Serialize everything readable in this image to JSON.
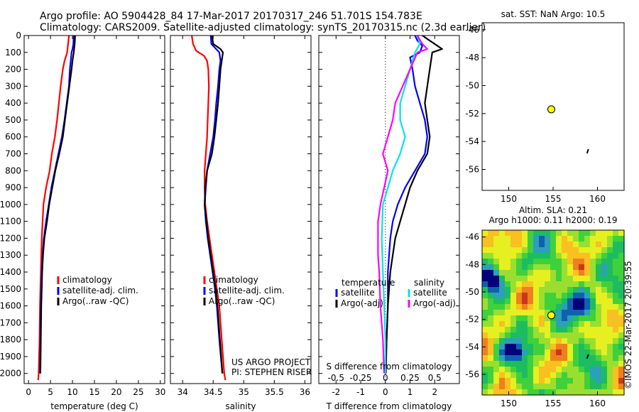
{
  "header": {
    "line1": "Argo profile: AO 5904428_84 17-Mar-2017 20170317_246 51.701S 154.783E",
    "line2": "Climatology: CARS2009. Satellite-adjusted climatology: synTS_20170315.nc (2.3d earlier)"
  },
  "credit": "©IMOS 22-Mar-2017 20:39:55",
  "colors": {
    "climatology": "#ff0000",
    "satellite": "#0000ff",
    "argo": "#000000",
    "sal_satellite": "#00e5e5",
    "sal_argo": "#ff00ff",
    "float_marker": "#ffff00"
  },
  "chart_data": [
    {
      "id": "temperature",
      "type": "line",
      "xlabel": "temperature (deg C)",
      "ylabel": "",
      "xlim": [
        -1,
        31
      ],
      "ylim": [
        2060,
        0
      ],
      "xticks": [
        0,
        5,
        10,
        15,
        20,
        25,
        30
      ],
      "yticks": [
        0,
        100,
        200,
        300,
        400,
        500,
        600,
        700,
        800,
        900,
        1000,
        1100,
        1200,
        1300,
        1400,
        1500,
        1600,
        1700,
        1800,
        1900,
        2000
      ],
      "legend": [
        "climatology",
        "satellite-adj. clim.",
        "Argo(..raw -QC)"
      ],
      "legend_position": "lower-right",
      "series": [
        {
          "name": "climatology",
          "color": "#ff0000",
          "points": [
            [
              9.2,
              0
            ],
            [
              9.0,
              50
            ],
            [
              8.8,
              100
            ],
            [
              8.2,
              150
            ],
            [
              7.8,
              200
            ],
            [
              7.3,
              300
            ],
            [
              6.9,
              400
            ],
            [
              6.5,
              500
            ],
            [
              6.0,
              600
            ],
            [
              5.3,
              700
            ],
            [
              4.8,
              800
            ],
            [
              4.0,
              900
            ],
            [
              3.4,
              1000
            ],
            [
              3.2,
              1100
            ],
            [
              3.0,
              1200
            ],
            [
              2.9,
              1300
            ],
            [
              2.8,
              1400
            ],
            [
              2.7,
              1500
            ],
            [
              2.6,
              1600
            ],
            [
              2.5,
              1800
            ],
            [
              2.3,
              2000
            ],
            [
              2.2,
              2040
            ]
          ]
        },
        {
          "name": "satellite-adj. clim.",
          "color": "#0000ff",
          "points": [
            [
              10.3,
              0
            ],
            [
              10.2,
              50
            ],
            [
              10.0,
              80
            ],
            [
              9.8,
              100
            ],
            [
              9.6,
              150
            ],
            [
              9.4,
              200
            ],
            [
              9.2,
              300
            ],
            [
              8.7,
              400
            ],
            [
              8.2,
              500
            ],
            [
              7.6,
              600
            ],
            [
              6.8,
              700
            ],
            [
              6.0,
              800
            ],
            [
              5.2,
              900
            ],
            [
              4.6,
              1000
            ],
            [
              4.0,
              1100
            ],
            [
              3.5,
              1200
            ],
            [
              3.2,
              1300
            ],
            [
              3.0,
              1400
            ],
            [
              2.9,
              1500
            ],
            [
              2.8,
              1600
            ],
            [
              2.7,
              1800
            ],
            [
              2.6,
              2000
            ]
          ]
        },
        {
          "name": "Argo(..raw -QC)",
          "color": "#000000",
          "points": [
            [
              10.6,
              0
            ],
            [
              10.5,
              50
            ],
            [
              10.3,
              100
            ],
            [
              10.0,
              150
            ],
            [
              9.8,
              200
            ],
            [
              9.3,
              300
            ],
            [
              8.8,
              400
            ],
            [
              8.3,
              500
            ],
            [
              7.8,
              600
            ],
            [
              7.0,
              700
            ],
            [
              6.1,
              800
            ],
            [
              5.4,
              900
            ],
            [
              4.7,
              1000
            ],
            [
              4.2,
              1100
            ],
            [
              3.6,
              1200
            ],
            [
              3.3,
              1300
            ],
            [
              3.1,
              1400
            ],
            [
              3.0,
              1500
            ],
            [
              2.9,
              1600
            ],
            [
              2.8,
              1800
            ],
            [
              2.7,
              2000
            ]
          ]
        }
      ]
    },
    {
      "id": "salinity",
      "type": "line",
      "xlabel": "salinity",
      "ylabel": "",
      "xlim": [
        33.8,
        36.1
      ],
      "ylim": [
        2060,
        0
      ],
      "xticks": [
        34,
        34.5,
        35,
        35.5,
        36
      ],
      "legend": [
        "climatology",
        "satellite-adj. clim.",
        "Argo(..raw -QC)"
      ],
      "legend_position": "lower-right",
      "series": [
        {
          "name": "climatology",
          "color": "#ff0000",
          "points": [
            [
              34.15,
              0
            ],
            [
              34.17,
              50
            ],
            [
              34.22,
              90
            ],
            [
              34.35,
              120
            ],
            [
              34.4,
              150
            ],
            [
              34.42,
              200
            ],
            [
              34.43,
              300
            ],
            [
              34.42,
              400
            ],
            [
              34.41,
              500
            ],
            [
              34.4,
              600
            ],
            [
              34.38,
              700
            ],
            [
              34.36,
              800
            ],
            [
              34.36,
              900
            ],
            [
              34.37,
              1000
            ],
            [
              34.4,
              1100
            ],
            [
              34.44,
              1200
            ],
            [
              34.48,
              1300
            ],
            [
              34.52,
              1400
            ],
            [
              34.56,
              1500
            ],
            [
              34.6,
              1600
            ],
            [
              34.64,
              1800
            ],
            [
              34.68,
              2000
            ],
            [
              34.7,
              2040
            ]
          ]
        },
        {
          "name": "satellite-adj. clim.",
          "color": "#0000ff",
          "points": [
            [
              34.46,
              0
            ],
            [
              34.47,
              50
            ],
            [
              34.6,
              100
            ],
            [
              34.62,
              150
            ],
            [
              34.6,
              200
            ],
            [
              34.58,
              300
            ],
            [
              34.55,
              400
            ],
            [
              34.53,
              500
            ],
            [
              34.5,
              600
            ],
            [
              34.45,
              700
            ],
            [
              34.4,
              800
            ],
            [
              34.38,
              900
            ],
            [
              34.36,
              1000
            ],
            [
              34.38,
              1100
            ],
            [
              34.41,
              1200
            ],
            [
              34.45,
              1300
            ],
            [
              34.49,
              1400
            ],
            [
              34.53,
              1500
            ],
            [
              34.56,
              1600
            ],
            [
              34.6,
              1800
            ],
            [
              34.65,
              2000
            ]
          ]
        },
        {
          "name": "Argo(..raw -QC)",
          "color": "#000000",
          "points": [
            [
              34.48,
              0
            ],
            [
              34.5,
              50
            ],
            [
              34.62,
              80
            ],
            [
              34.66,
              100
            ],
            [
              34.64,
              150
            ],
            [
              34.62,
              200
            ],
            [
              34.6,
              300
            ],
            [
              34.58,
              400
            ],
            [
              34.55,
              500
            ],
            [
              34.52,
              600
            ],
            [
              34.48,
              700
            ],
            [
              34.4,
              800
            ],
            [
              34.37,
              900
            ],
            [
              34.36,
              1000
            ],
            [
              34.39,
              1100
            ],
            [
              34.42,
              1200
            ],
            [
              34.46,
              1300
            ],
            [
              34.5,
              1400
            ],
            [
              34.54,
              1500
            ],
            [
              34.57,
              1600
            ],
            [
              34.61,
              1800
            ],
            [
              34.65,
              2000
            ]
          ]
        }
      ],
      "annotations": [
        "US ARGO PROJECT",
        "PI: STEPHEN RISER"
      ]
    },
    {
      "id": "differences",
      "type": "line",
      "xlabel": "T difference from climatology",
      "xlabel_top": "S difference from climatology",
      "xlim": [
        -2.7,
        3.0
      ],
      "ylim": [
        2060,
        0
      ],
      "xticks": [
        -2,
        -1,
        0,
        1,
        2
      ],
      "s_ticks": [
        {
          "v": -0.5,
          "label": "-0.5"
        },
        {
          "v": -0.25,
          "label": "-0.25"
        },
        {
          "v": 0,
          "label": "0"
        },
        {
          "v": 0.25,
          "label": "0.25"
        },
        {
          "v": 0.5,
          "label": "0.5"
        }
      ],
      "s_scale": 4,
      "legend_headers": [
        "temperature",
        "salinity"
      ],
      "legend": [
        "satellite",
        "Argo(-adj)",
        "satellite",
        "Argo(-adj)"
      ],
      "legend_position": "lower-center",
      "series": [
        {
          "name": "satellite",
          "group": "temperature",
          "color": "#0000ff",
          "points": [
            [
              1.2,
              0
            ],
            [
              1.3,
              30
            ],
            [
              1.5,
              60
            ],
            [
              1.4,
              100
            ],
            [
              1.0,
              130
            ],
            [
              1.1,
              200
            ],
            [
              1.2,
              300
            ],
            [
              1.4,
              400
            ],
            [
              1.6,
              500
            ],
            [
              1.7,
              600
            ],
            [
              1.6,
              700
            ],
            [
              1.2,
              800
            ],
            [
              0.8,
              900
            ],
            [
              0.5,
              1000
            ],
            [
              0.3,
              1100
            ],
            [
              0.2,
              1200
            ],
            [
              0.1,
              1400
            ],
            [
              0.1,
              1600
            ],
            [
              0.05,
              1800
            ],
            [
              0.0,
              2000
            ]
          ]
        },
        {
          "name": "Argo(-adj)",
          "group": "temperature",
          "color": "#000000",
          "points": [
            [
              1.5,
              0
            ],
            [
              1.7,
              20
            ],
            [
              2.3,
              80
            ],
            [
              1.9,
              100
            ],
            [
              1.8,
              200
            ],
            [
              1.7,
              300
            ],
            [
              1.6,
              400
            ],
            [
              1.7,
              500
            ],
            [
              1.8,
              600
            ],
            [
              1.7,
              700
            ],
            [
              1.3,
              800
            ],
            [
              1.0,
              900
            ],
            [
              0.8,
              1000
            ],
            [
              0.6,
              1100
            ],
            [
              0.4,
              1200
            ],
            [
              0.2,
              1400
            ],
            [
              0.1,
              1600
            ],
            [
              0.05,
              1800
            ],
            [
              0.02,
              2000
            ]
          ]
        },
        {
          "name": "satellite",
          "group": "salinity",
          "color": "#00e5e5",
          "points": [
            [
              1.3,
              0
            ],
            [
              1.4,
              50
            ],
            [
              1.2,
              100
            ],
            [
              1.0,
              200
            ],
            [
              0.8,
              300
            ],
            [
              0.6,
              400
            ],
            [
              0.6,
              500
            ],
            [
              0.8,
              600
            ],
            [
              0.6,
              700
            ],
            [
              0.3,
              800
            ],
            [
              0.1,
              900
            ],
            [
              -0.1,
              1000
            ],
            [
              -0.15,
              1200
            ],
            [
              -0.1,
              1400
            ],
            [
              -0.05,
              1600
            ],
            [
              0.0,
              1800
            ],
            [
              0.0,
              2000
            ]
          ]
        },
        {
          "name": "Argo(-adj)",
          "group": "salinity",
          "color": "#ff00ff",
          "points": [
            [
              1.3,
              0
            ],
            [
              1.5,
              50
            ],
            [
              1.7,
              80
            ],
            [
              1.3,
              100
            ],
            [
              1.0,
              200
            ],
            [
              0.7,
              300
            ],
            [
              0.4,
              400
            ],
            [
              0.3,
              500
            ],
            [
              0.1,
              600
            ],
            [
              -0.1,
              700
            ],
            [
              0.1,
              800
            ],
            [
              -0.05,
              900
            ],
            [
              -0.2,
              1000
            ],
            [
              -0.3,
              1100
            ],
            [
              -0.3,
              1200
            ],
            [
              -0.3,
              1300
            ],
            [
              -0.25,
              1400
            ],
            [
              -0.2,
              1600
            ],
            [
              -0.1,
              1800
            ],
            [
              -0.05,
              2000
            ]
          ]
        }
      ]
    },
    {
      "id": "sst-map",
      "type": "scatter",
      "title": "sat. SST: NaN Argo: 10.5",
      "xlim": [
        147,
        163
      ],
      "ylim": [
        -57.5,
        -45.5
      ],
      "xticks": [
        150,
        155,
        160
      ],
      "yticks": [
        -46,
        -48,
        -50,
        -52,
        -54,
        -56
      ],
      "points": [
        {
          "x": 154.8,
          "y": -51.7,
          "marker": "circle",
          "color": "#ffff00"
        },
        {
          "x": 158.9,
          "y": -54.7,
          "marker": "track",
          "color": "#000000"
        }
      ]
    },
    {
      "id": "sla-map",
      "type": "heatmap",
      "title_lines": [
        "Altim. SLA: 0.21",
        "Argo h1000: 0.11 h2000: 0.19"
      ],
      "xlim": [
        147,
        163
      ],
      "ylim": [
        -57.5,
        -45.5
      ],
      "xticks": [
        150,
        155,
        160
      ],
      "yticks": [
        -46,
        -48,
        -50,
        -52,
        -54,
        -56
      ],
      "palette": [
        "#00007a",
        "#1060b0",
        "#2ba0b8",
        "#1dbc61",
        "#3fd13b",
        "#9adf30",
        "#e6f020",
        "#f8c020",
        "#f07f20",
        "#c83818"
      ],
      "points": [
        {
          "x": 154.8,
          "y": -51.7,
          "marker": "circle",
          "color": "#ffff00"
        },
        {
          "x": 158.9,
          "y": -54.7,
          "marker": "track",
          "color": "#000000"
        }
      ]
    }
  ]
}
